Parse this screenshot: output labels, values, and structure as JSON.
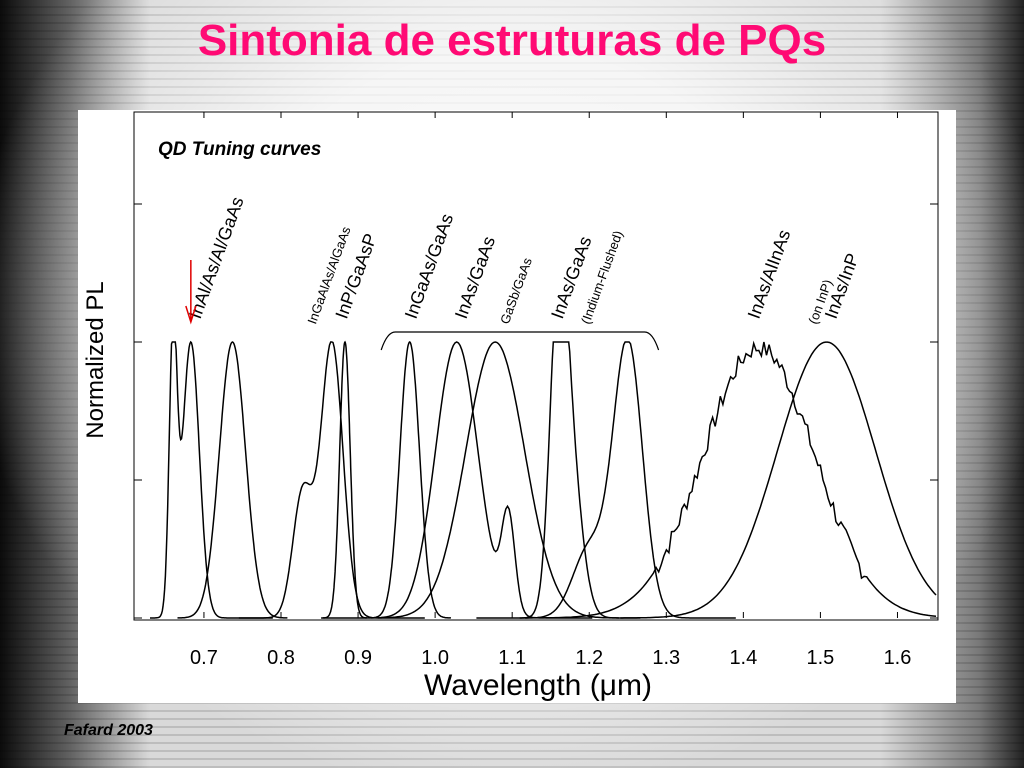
{
  "slide": {
    "title": "Sintonia de estruturas de PQs",
    "credit": "Fafard 2003"
  },
  "chart_data": {
    "type": "line",
    "title": "QD Tuning curves",
    "xlabel": "Wavelength   (μm)",
    "ylabel": "Normalized PL",
    "xlim": [
      0.63,
      1.65
    ],
    "ylim": [
      0,
      1.0
    ],
    "xticks": [
      "0.7",
      "0.8",
      "0.9",
      "1.0",
      "1.1",
      "1.2",
      "1.3",
      "1.4",
      "1.5",
      "1.6"
    ],
    "xtick_values": [
      0.7,
      0.8,
      0.9,
      1.0,
      1.1,
      1.2,
      1.3,
      1.4,
      1.5,
      1.6
    ],
    "grid": false,
    "series": [
      {
        "name": "InAl/As/Al/GaAs",
        "peak": 0.683,
        "fwhm": 0.026,
        "amp": 1.0,
        "extra": [
          [
            0.66,
            0.012,
            1.0
          ]
        ]
      },
      {
        "name": "InAl/As/Al/GaAs",
        "peak": 0.737,
        "fwhm": 0.04,
        "amp": 1.0
      },
      {
        "name": "InGaAlAs/AlGaAs",
        "peak": 0.866,
        "fwhm": 0.034,
        "amp": 1.0,
        "extra": [
          [
            0.828,
            0.03,
            0.45
          ]
        ]
      },
      {
        "name": "InP/GaAsP",
        "peak": 0.883,
        "fwhm": 0.016,
        "amp": 1.0
      },
      {
        "name": "InGaAs/GaAs",
        "peak": 0.967,
        "fwhm": 0.03,
        "amp": 1.0
      },
      {
        "name": "InAs/GaAs",
        "peak": 1.028,
        "fwhm": 0.065,
        "amp": 1.0,
        "extra": [
          [
            1.095,
            0.02,
            0.35
          ]
        ]
      },
      {
        "name": "GaSb/GaAs",
        "peak": 1.078,
        "fwhm": 0.09,
        "amp": 1.0
      },
      {
        "name": "InAs/GaAs (Indium-Flushed)",
        "peak": 1.16,
        "fwhm": 0.026,
        "amp": 1.0,
        "extra": [
          [
            1.175,
            0.035,
            0.55
          ]
        ]
      },
      {
        "name": "InAs/GaAs (Indium-Flushed)",
        "peak": 1.25,
        "fwhm": 0.045,
        "amp": 1.0,
        "extra": [
          [
            1.2,
            0.05,
            0.25
          ]
        ]
      },
      {
        "name": "InAs/AlInAs (on InP)",
        "peak": 1.42,
        "fwhm": 0.17,
        "amp": 0.98,
        "noisy": true
      },
      {
        "name": "InAs/InP",
        "peak": 1.508,
        "fwhm": 0.15,
        "amp": 1.0
      }
    ],
    "labels": [
      {
        "text": "InAl/As/Al/GaAs",
        "x": 0.695,
        "small": false
      },
      {
        "text": "InGaAlAs/AlGaAs",
        "x": 0.845,
        "small": true
      },
      {
        "text": "InP/GaAsP",
        "x": 0.885,
        "small": false
      },
      {
        "text": "InGaAs/GaAs",
        "x": 0.975,
        "small": false
      },
      {
        "text": "InAs/GaAs",
        "x": 1.04,
        "small": false
      },
      {
        "text": "GaSb/GaAs",
        "x": 1.095,
        "small": true
      },
      {
        "text": "InAs/GaAs",
        "x": 1.165,
        "small": false
      },
      {
        "text": "(Indium-Flushed)",
        "x": 1.2,
        "small": true
      },
      {
        "text": "InAs/AlInAs",
        "x": 1.42,
        "small": false
      },
      {
        "text": "(on InP)",
        "x": 1.495,
        "small": true
      },
      {
        "text": "InAs/InP",
        "x": 1.52,
        "small": false
      }
    ],
    "arrow_x": 0.683,
    "bracket": [
      0.93,
      1.29
    ],
    "colors": {
      "arrow": "#e00000",
      "line": "#000000",
      "title": "#ff0a74"
    }
  }
}
